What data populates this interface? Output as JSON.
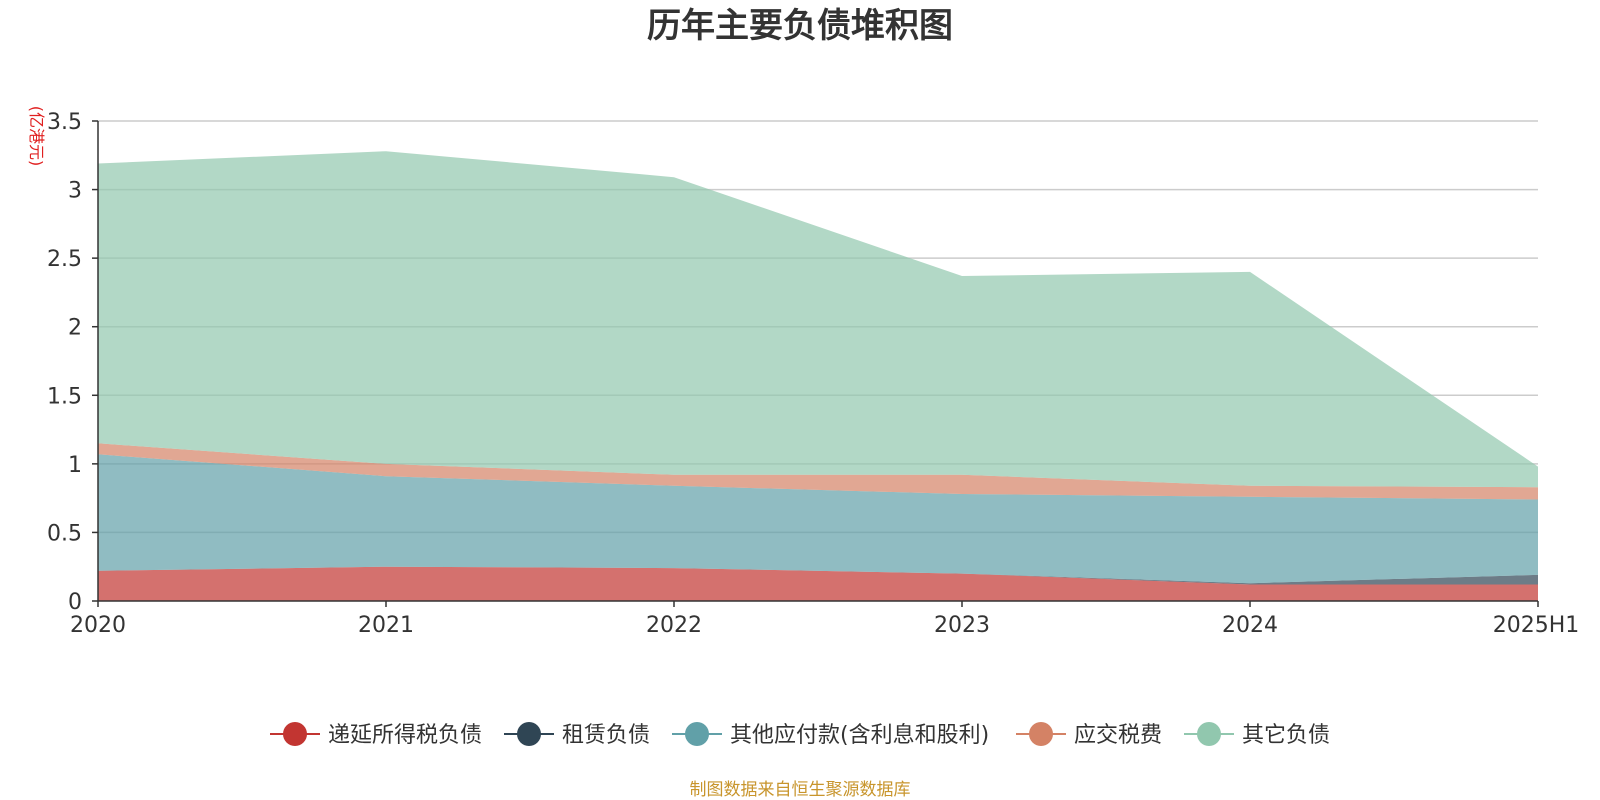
{
  "chart_data": {
    "type": "area",
    "stacked": true,
    "title": "历年主要负债堆积图",
    "y_unit_label": "(亿港元)",
    "categories": [
      "2020",
      "2021",
      "2022",
      "2023",
      "2024",
      "2025H1"
    ],
    "ylim": [
      0,
      3.5
    ],
    "yticks": [
      "0",
      "0.5",
      "1",
      "1.5",
      "2",
      "2.5",
      "3",
      "3.5"
    ],
    "grid": true,
    "legend_position": "bottom",
    "series": [
      {
        "name": "递延所得税负债",
        "color": "#c23531",
        "values": [
          0.22,
          0.25,
          0.24,
          0.2,
          0.12,
          0.12
        ]
      },
      {
        "name": "租赁负债",
        "color": "#2f4554",
        "values": [
          0.0,
          0.0,
          0.0,
          0.0,
          0.01,
          0.07
        ]
      },
      {
        "name": "其他应付款(含利息和股利)",
        "color": "#61a0a8",
        "values": [
          0.85,
          0.66,
          0.6,
          0.58,
          0.63,
          0.55
        ]
      },
      {
        "name": "应交税费",
        "color": "#d48265",
        "values": [
          0.08,
          0.09,
          0.08,
          0.14,
          0.08,
          0.09
        ]
      },
      {
        "name": "其它负债",
        "color": "#91c7ae",
        "values": [
          2.04,
          2.28,
          2.17,
          1.45,
          1.56,
          0.15
        ]
      }
    ]
  },
  "source_note": "制图数据来自恒生聚源数据库"
}
